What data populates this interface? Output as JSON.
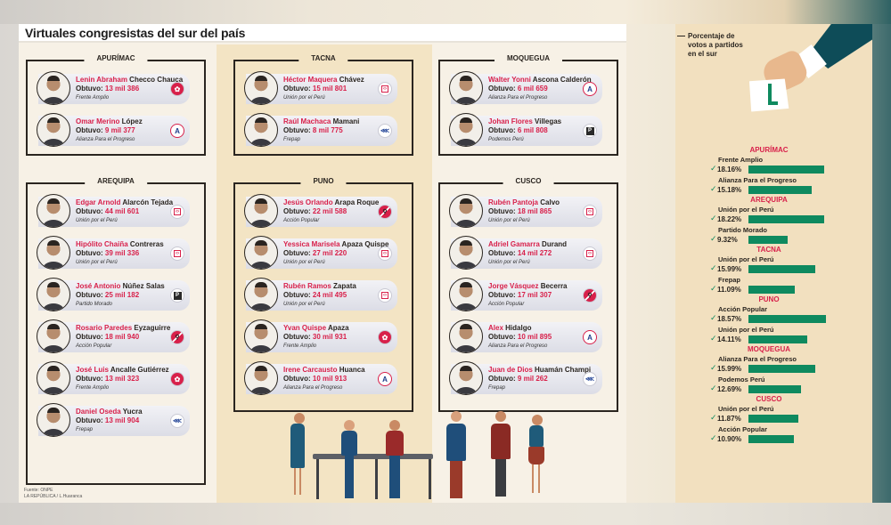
{
  "title": "Virtuales congresistas del sur del país",
  "vote_prefix": "Obtuvo:",
  "regions": [
    {
      "name": "APURÍMAC",
      "candidates": [
        {
          "given": "Lenin Abraham",
          "surname": "Checco Chauca",
          "votes": "13 mil 386",
          "party": "Frente Amplio",
          "logo": "frente-amplio-flower-icon"
        },
        {
          "given": "Omar Merino",
          "surname": "López",
          "votes": "9 mil 377",
          "party": "Alianza Para el Progreso",
          "logo": "app-a-icon"
        }
      ]
    },
    {
      "name": "TACNA",
      "candidates": [
        {
          "given": "Héctor Maquera",
          "surname": "Chávez",
          "votes": "15 mil 801",
          "party": "Unión por el Perú",
          "logo": "upp-icon"
        },
        {
          "given": "Raúl Machaca",
          "surname": "Mamani",
          "votes": "8 mil 775",
          "party": "Frepap",
          "logo": "frepap-fish-icon"
        }
      ]
    },
    {
      "name": "MOQUEGUA",
      "candidates": [
        {
          "given": "Walter Yonni",
          "surname": "Ascona Calderón",
          "votes": "6 mil 659",
          "party": "Alianza Para el Progreso",
          "logo": "app-a-icon"
        },
        {
          "given": "Johan Flores",
          "surname": "Villegas",
          "votes": "6 mil 808",
          "party": "Podemos Perú",
          "logo": "podemos-icon"
        }
      ]
    },
    {
      "name": "AREQUIPA",
      "candidates": [
        {
          "given": "Edgar Arnold",
          "surname": "Alarcón Tejada",
          "votes": "44 mil 601",
          "party": "Unión por el Perú",
          "logo": "upp-icon"
        },
        {
          "given": "Hipólito Chaiña",
          "surname": "Contreras",
          "votes": "39 mil 336",
          "party": "Unión por el Perú",
          "logo": "upp-icon"
        },
        {
          "given": "José Antonio",
          "surname": "Núñez Salas",
          "votes": "25 mil 182",
          "party": "Partido Morado",
          "logo": "partido-morado-icon"
        },
        {
          "given": "Rosario Paredes",
          "surname": "Eyzaguirre",
          "votes": "18 mil 940",
          "party": "Acción Popular",
          "logo": "accion-popular-icon"
        },
        {
          "given": "José Luis",
          "surname": "Ancalle Gutiérrez",
          "votes": "13 mil 323",
          "party": "Frente Amplio",
          "logo": "frente-amplio-flower-icon"
        },
        {
          "given": "Daniel Oseda",
          "surname": "Yucra",
          "votes": "13 mil 904",
          "party": "Frepap",
          "logo": "frepap-fish-icon"
        }
      ]
    },
    {
      "name": "PUNO",
      "candidates": [
        {
          "given": "Jesús Orlando",
          "surname": "Arapa Roque",
          "votes": "22 mil 588",
          "party": "Acción Popular",
          "logo": "accion-popular-icon"
        },
        {
          "given": "Yessica Marisela",
          "surname": "Apaza Quispe",
          "votes": "27 mil 220",
          "party": "Unión por el Perú",
          "logo": "upp-icon"
        },
        {
          "given": "Rubén Ramos",
          "surname": "Zapata",
          "votes": "24 mil 495",
          "party": "Unión por el Perú",
          "logo": "upp-icon"
        },
        {
          "given": "Yvan Quispe",
          "surname": "Apaza",
          "votes": "30 mil 931",
          "party": "Frente Amplio",
          "logo": "frente-amplio-flower-icon"
        },
        {
          "given": "Irene Carcausto",
          "surname": "Huanca",
          "votes": "10 mil 913",
          "party": "Alianza Para el Progreso",
          "logo": "app-a-icon"
        }
      ]
    },
    {
      "name": "CUSCO",
      "candidates": [
        {
          "given": "Rubén Pantoja",
          "surname": "Calvo",
          "votes": "18 mil 865",
          "party": "Unión por el Perú",
          "logo": "upp-icon"
        },
        {
          "given": "Adriel Gamarra",
          "surname": "Durand",
          "votes": "14 mil 272",
          "party": "Unión por el Perú",
          "logo": "upp-icon"
        },
        {
          "given": "Jorge Vásquez",
          "surname": "Becerra",
          "votes": "17 mil 307",
          "party": "Acción Popular",
          "logo": "accion-popular-icon"
        },
        {
          "given": "Alex",
          "surname": "Hidalgo",
          "votes": "10 mil 895",
          "party": "Alianza Para el Progreso",
          "logo": "app-a-icon"
        },
        {
          "given": "Juan de Dios",
          "surname": "Huamán Champi",
          "votes": "9 mil 262",
          "party": "Frepap",
          "logo": "frepap-fish-icon"
        }
      ]
    }
  ],
  "source": {
    "line1": "Fuente: ONPE",
    "line2": "LA REPÚBLICA / L.Huaranca"
  },
  "side_panel": {
    "caption_lines": [
      "Porcentaje de",
      "votos a partidos",
      "en el sur"
    ],
    "check_glyph": "✓"
  },
  "chart_data": {
    "type": "bar",
    "title": "Porcentaje de votos a partidos en el sur",
    "orientation": "horizontal",
    "groups": [
      {
        "region": "APURÍMAC",
        "bars": [
          {
            "party": "Frente Amplio",
            "value": 18.16,
            "label": "18.16%"
          },
          {
            "party": "Alianza Para el Progreso",
            "value": 15.18,
            "label": "15.18%"
          }
        ]
      },
      {
        "region": "AREQUIPA",
        "bars": [
          {
            "party": "Unión por el Perú",
            "value": 18.22,
            "label": "18.22%"
          },
          {
            "party": "Partido Morado",
            "value": 9.32,
            "label": "9.32%"
          }
        ]
      },
      {
        "region": "TACNA",
        "bars": [
          {
            "party": "Unión por el Perú",
            "value": 15.99,
            "label": "15.99%"
          },
          {
            "party": "Frepap",
            "value": 11.09,
            "label": "11.09%"
          }
        ]
      },
      {
        "region": "PUNO",
        "bars": [
          {
            "party": "Acción Popular",
            "value": 18.57,
            "label": "18.57%"
          },
          {
            "party": "Unión por el Perú",
            "value": 14.11,
            "label": "14.11%"
          }
        ]
      },
      {
        "region": "MOQUEGUA",
        "bars": [
          {
            "party": "Alianza Para el Progreso",
            "value": 15.99,
            "label": "15.99%"
          },
          {
            "party": "Podemos Perú",
            "value": 12.69,
            "label": "12.69%"
          }
        ]
      },
      {
        "region": "CUSCO",
        "bars": [
          {
            "party": "Unión por el Perú",
            "value": 11.87,
            "label": "11.87%"
          },
          {
            "party": "Acción Popular",
            "value": 10.9,
            "label": "10.90%"
          }
        ]
      }
    ],
    "bar_color": "#0f8a5f",
    "region_label_color": "#d8204a"
  },
  "colors": {
    "accent_red": "#d8204a",
    "bar_green": "#0f8a5f",
    "panel_beige": "#f3e4c4",
    "sleeve_teal": "#0e4c58"
  }
}
